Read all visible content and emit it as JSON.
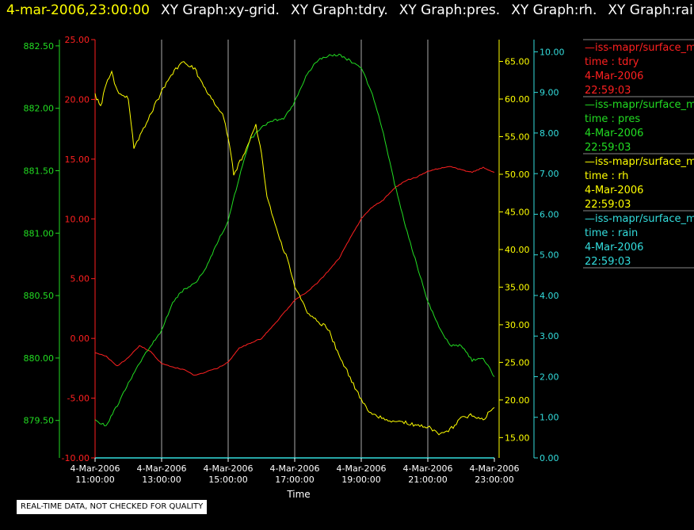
{
  "header": {
    "timestamp": "4-mar-2006,23:00:00",
    "graph_titles": [
      "XY Graph:xy-grid.",
      "XY Graph:tdry.",
      "XY Graph:pres.",
      "XY Graph:rh.",
      "XY Graph:rain."
    ]
  },
  "disclaimer": "REAL-TIME DATA, NOT CHECKED FOR QUALITY",
  "colors": {
    "tdry": "#ff2020",
    "pres": "#22dd22",
    "rh": "#ffff00",
    "rain": "#33dddd",
    "grid": "#ffffff",
    "background": "#000000"
  },
  "legend": [
    {
      "source": "—iss-mapr/surface_m",
      "field": "time : tdry",
      "date": "4-Mar-2006",
      "time": "22:59:03",
      "color": "#ff2020"
    },
    {
      "source": "—iss-mapr/surface_m",
      "field": "time : pres",
      "date": "4-Mar-2006",
      "time": "22:59:03",
      "color": "#22dd22"
    },
    {
      "source": "—iss-mapr/surface_m",
      "field": "time : rh",
      "date": "4-Mar-2006",
      "time": "22:59:03",
      "color": "#ffff00"
    },
    {
      "source": "—iss-mapr/surface_m",
      "field": "time : rain",
      "date": "4-Mar-2006",
      "time": "22:59:03",
      "color": "#33dddd"
    }
  ],
  "chart_data": {
    "type": "line",
    "xlabel": "Time",
    "x_ticks": [
      {
        "date": "4-Mar-2006",
        "time": "11:00:00"
      },
      {
        "date": "4-Mar-2006",
        "time": "13:00:00"
      },
      {
        "date": "4-Mar-2006",
        "time": "15:00:00"
      },
      {
        "date": "4-Mar-2006",
        "time": "17:00:00"
      },
      {
        "date": "4-Mar-2006",
        "time": "19:00:00"
      },
      {
        "date": "4-Mar-2006",
        "time": "21:00:00"
      },
      {
        "date": "4-Mar-2006",
        "time": "23:00:00"
      }
    ],
    "xlim": [
      "2006-03-04 11:00",
      "2006-03-04 23:00"
    ],
    "grid": "vertical",
    "axes": {
      "tdry": {
        "ylim": [
          -10,
          25
        ],
        "ticks": [
          "25.00",
          "20.00",
          "15.00",
          "10.00",
          "5.00",
          "0.00",
          "-5.00",
          "-10.00"
        ]
      },
      "pres": {
        "ylim": [
          879.2,
          882.55
        ],
        "ticks": [
          "882.50",
          "882.00",
          "881.50",
          "881.00",
          "880.50",
          "880.00",
          "879.50"
        ]
      },
      "rh": {
        "ylim": [
          12.3,
          67.9
        ],
        "ticks": [
          "65.00",
          "60.00",
          "55.00",
          "50.00",
          "45.00",
          "40.00",
          "35.00",
          "30.00",
          "25.00",
          "20.00",
          "15.00"
        ]
      },
      "rain": {
        "ylim": [
          0,
          10.3
        ],
        "ticks": [
          "10.00",
          "9.00",
          "8.00",
          "7.00",
          "6.00",
          "5.00",
          "4.00",
          "3.00",
          "2.00",
          "1.00",
          "0.00"
        ]
      }
    },
    "series": [
      {
        "name": "tdry",
        "axis": "tdry",
        "x": [
          "11:00",
          "11:20",
          "11:40",
          "12:00",
          "12:20",
          "12:40",
          "13:00",
          "13:20",
          "13:40",
          "14:00",
          "14:20",
          "14:40",
          "15:00",
          "15:20",
          "15:40",
          "16:00",
          "16:20",
          "16:40",
          "17:00",
          "17:20",
          "17:40",
          "18:00",
          "18:20",
          "18:40",
          "19:00",
          "19:20",
          "19:40",
          "20:00",
          "20:20",
          "20:40",
          "21:00",
          "21:20",
          "21:40",
          "22:00",
          "22:20",
          "22:40",
          "23:00"
        ],
        "values": [
          -1.2,
          -1.5,
          -2.3,
          -1.6,
          -0.6,
          -1.1,
          -2.1,
          -2.4,
          -2.6,
          -3.1,
          -2.8,
          -2.5,
          -2.0,
          -0.8,
          -0.4,
          0.0,
          1.0,
          2.1,
          3.2,
          3.8,
          4.6,
          5.6,
          6.7,
          8.4,
          10.0,
          11.0,
          11.6,
          12.6,
          13.2,
          13.5,
          14.0,
          14.2,
          14.4,
          14.1,
          13.9,
          14.3,
          13.9
        ]
      },
      {
        "name": "pres",
        "axis": "pres",
        "x": [
          "11:00",
          "11:20",
          "11:40",
          "12:00",
          "12:20",
          "12:40",
          "13:00",
          "13:20",
          "13:40",
          "14:00",
          "14:20",
          "14:40",
          "15:00",
          "15:20",
          "15:40",
          "16:00",
          "16:20",
          "16:40",
          "17:00",
          "17:20",
          "17:40",
          "18:00",
          "18:20",
          "18:40",
          "19:00",
          "19:20",
          "19:40",
          "20:00",
          "20:20",
          "20:40",
          "21:00",
          "21:20",
          "21:40",
          "22:00",
          "22:20",
          "22:40",
          "23:00"
        ],
        "values": [
          879.5,
          879.46,
          879.62,
          879.8,
          879.96,
          880.1,
          880.22,
          880.45,
          880.55,
          880.6,
          880.72,
          880.92,
          881.1,
          881.45,
          881.75,
          881.85,
          881.9,
          881.92,
          882.05,
          882.25,
          882.38,
          882.42,
          882.43,
          882.38,
          882.32,
          882.12,
          881.8,
          881.4,
          881.05,
          880.75,
          880.45,
          880.25,
          880.1,
          880.1,
          879.98,
          880.0,
          879.85
        ]
      },
      {
        "name": "rh",
        "axis": "rh",
        "x": [
          "11:00",
          "11:10",
          "11:20",
          "11:30",
          "11:40",
          "12:00",
          "12:10",
          "12:30",
          "12:50",
          "13:00",
          "13:20",
          "13:40",
          "14:00",
          "14:10",
          "14:30",
          "14:50",
          "15:00",
          "15:10",
          "15:30",
          "15:50",
          "16:00",
          "16:10",
          "16:30",
          "16:50",
          "17:00",
          "17:20",
          "17:40",
          "18:00",
          "18:20",
          "18:40",
          "19:00",
          "19:20",
          "19:40",
          "20:00",
          "20:20",
          "20:40",
          "21:00",
          "21:20",
          "21:40",
          "22:00",
          "22:20",
          "22:40",
          "23:00"
        ],
        "values": [
          60.5,
          59.0,
          62.0,
          63.5,
          61.0,
          60.0,
          53.5,
          56.5,
          59.5,
          61.0,
          63.5,
          65.0,
          64.0,
          62.5,
          60.0,
          58.0,
          55.0,
          50.0,
          53.0,
          56.5,
          53.0,
          47.0,
          42.0,
          38.0,
          35.0,
          32.0,
          30.5,
          29.5,
          26.0,
          23.0,
          20.0,
          18.0,
          17.5,
          17.0,
          17.0,
          16.5,
          16.5,
          15.5,
          16.0,
          17.5,
          18.0,
          17.5,
          19.0
        ]
      },
      {
        "name": "rain",
        "axis": "rain",
        "x": [
          "11:00",
          "23:00"
        ],
        "values": [
          0.0,
          0.0
        ]
      }
    ]
  }
}
